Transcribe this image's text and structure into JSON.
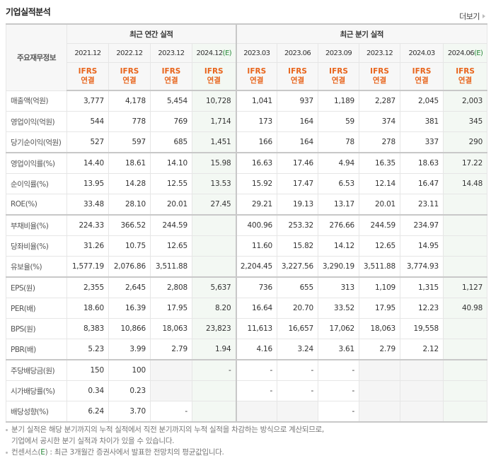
{
  "header": {
    "title": "기업실적분석",
    "more_label": "더보기"
  },
  "table": {
    "label_header": "주요재무정보",
    "groups": [
      {
        "label": "최근 연간 실적",
        "span": 4
      },
      {
        "label": "최근 분기 실적",
        "span": 6
      }
    ],
    "periods": [
      {
        "label": "2021.12",
        "est": ""
      },
      {
        "label": "2022.12",
        "est": ""
      },
      {
        "label": "2023.12",
        "est": ""
      },
      {
        "label": "2024.12",
        "est": "(E)"
      },
      {
        "label": "2023.03",
        "est": ""
      },
      {
        "label": "2023.06",
        "est": ""
      },
      {
        "label": "2023.09",
        "est": ""
      },
      {
        "label": "2023.12",
        "est": ""
      },
      {
        "label": "2024.03",
        "est": ""
      },
      {
        "label": "2024.06",
        "est": "(E)"
      }
    ],
    "standard": {
      "line1": "IFRS",
      "line2": "연결"
    },
    "rows": [
      {
        "label": "매출액(억원)",
        "values": [
          "3,777",
          "4,178",
          "5,454",
          "10,728",
          "1,041",
          "937",
          "1,189",
          "2,287",
          "2,045",
          "2,003"
        ]
      },
      {
        "label": "영업이익(억원)",
        "values": [
          "544",
          "778",
          "769",
          "1,714",
          "173",
          "164",
          "59",
          "374",
          "381",
          "345"
        ]
      },
      {
        "label": "당기순이익(억원)",
        "values": [
          "527",
          "597",
          "685",
          "1,451",
          "166",
          "164",
          "78",
          "278",
          "337",
          "290"
        ]
      },
      {
        "label": "영업이익률(%)",
        "values": [
          "14.40",
          "18.61",
          "14.10",
          "15.98",
          "16.63",
          "17.46",
          "4.94",
          "16.35",
          "18.63",
          "17.22"
        ]
      },
      {
        "label": "순이익률(%)",
        "values": [
          "13.95",
          "14.28",
          "12.55",
          "13.53",
          "15.92",
          "17.47",
          "6.53",
          "12.14",
          "16.47",
          "14.48"
        ]
      },
      {
        "label": "ROE(%)",
        "values": [
          "33.48",
          "28.10",
          "20.01",
          "27.45",
          "29.21",
          "19.13",
          "13.17",
          "20.01",
          "23.11",
          ""
        ]
      },
      {
        "label": "부채비율(%)",
        "values": [
          "224.33",
          "366.52",
          "244.59",
          "",
          "400.96",
          "253.32",
          "276.66",
          "244.59",
          "234.97",
          ""
        ]
      },
      {
        "label": "당좌비율(%)",
        "values": [
          "31.26",
          "10.75",
          "12.65",
          "",
          "11.60",
          "15.82",
          "14.12",
          "12.65",
          "14.95",
          ""
        ]
      },
      {
        "label": "유보율(%)",
        "values": [
          "1,577.19",
          "2,076.86",
          "3,511.88",
          "",
          "2,204.45",
          "3,227.56",
          "3,290.19",
          "3,511.88",
          "3,774.93",
          ""
        ]
      },
      {
        "label": "EPS(원)",
        "values": [
          "2,355",
          "2,645",
          "2,808",
          "5,637",
          "736",
          "655",
          "313",
          "1,109",
          "1,315",
          "1,127"
        ]
      },
      {
        "label": "PER(배)",
        "values": [
          "18.60",
          "16.39",
          "17.95",
          "8.20",
          "16.64",
          "20.70",
          "33.52",
          "17.95",
          "12.23",
          "40.98"
        ]
      },
      {
        "label": "BPS(원)",
        "values": [
          "8,383",
          "10,866",
          "18,063",
          "23,823",
          "11,613",
          "16,657",
          "17,062",
          "18,063",
          "19,558",
          ""
        ]
      },
      {
        "label": "PBR(배)",
        "values": [
          "5.23",
          "3.99",
          "2.79",
          "1.94",
          "4.16",
          "3.24",
          "3.61",
          "2.79",
          "2.12",
          ""
        ]
      },
      {
        "label": "주당배당금(원)",
        "values": [
          "150",
          "100",
          "",
          "-",
          "-",
          "-",
          "-",
          "",
          "",
          ""
        ]
      },
      {
        "label": "시가배당률(%)",
        "values": [
          "0.34",
          "0.23",
          "",
          "",
          "-",
          "-",
          "-",
          "",
          "",
          ""
        ]
      },
      {
        "label": "배당성향(%)",
        "values": [
          "6.24",
          "3.70",
          "-",
          "",
          "",
          "",
          "-",
          "",
          "",
          ""
        ]
      }
    ]
  },
  "notes": [
    {
      "text": "분기 실적은 해당 분기까지의 누적 실적에서 직전 분기까지의 누적 실적을 차감하는 방식으로 계산되므로,",
      "text2": "기업에서 공시한 분기 실적과 차이가 있을 수 있습니다."
    },
    {
      "prefix": "컨센서스(",
      "mark": "E",
      "suffix": ") : 최근 3개월간 증권사에서 발표한 전망치의 평균값입니다."
    }
  ],
  "colors": {
    "accent_orange": "#e8641b",
    "estimate_green": "#2a8a3a",
    "estimate_bg": "#f3f8f3",
    "blank_bg": "#f5f5f5"
  }
}
